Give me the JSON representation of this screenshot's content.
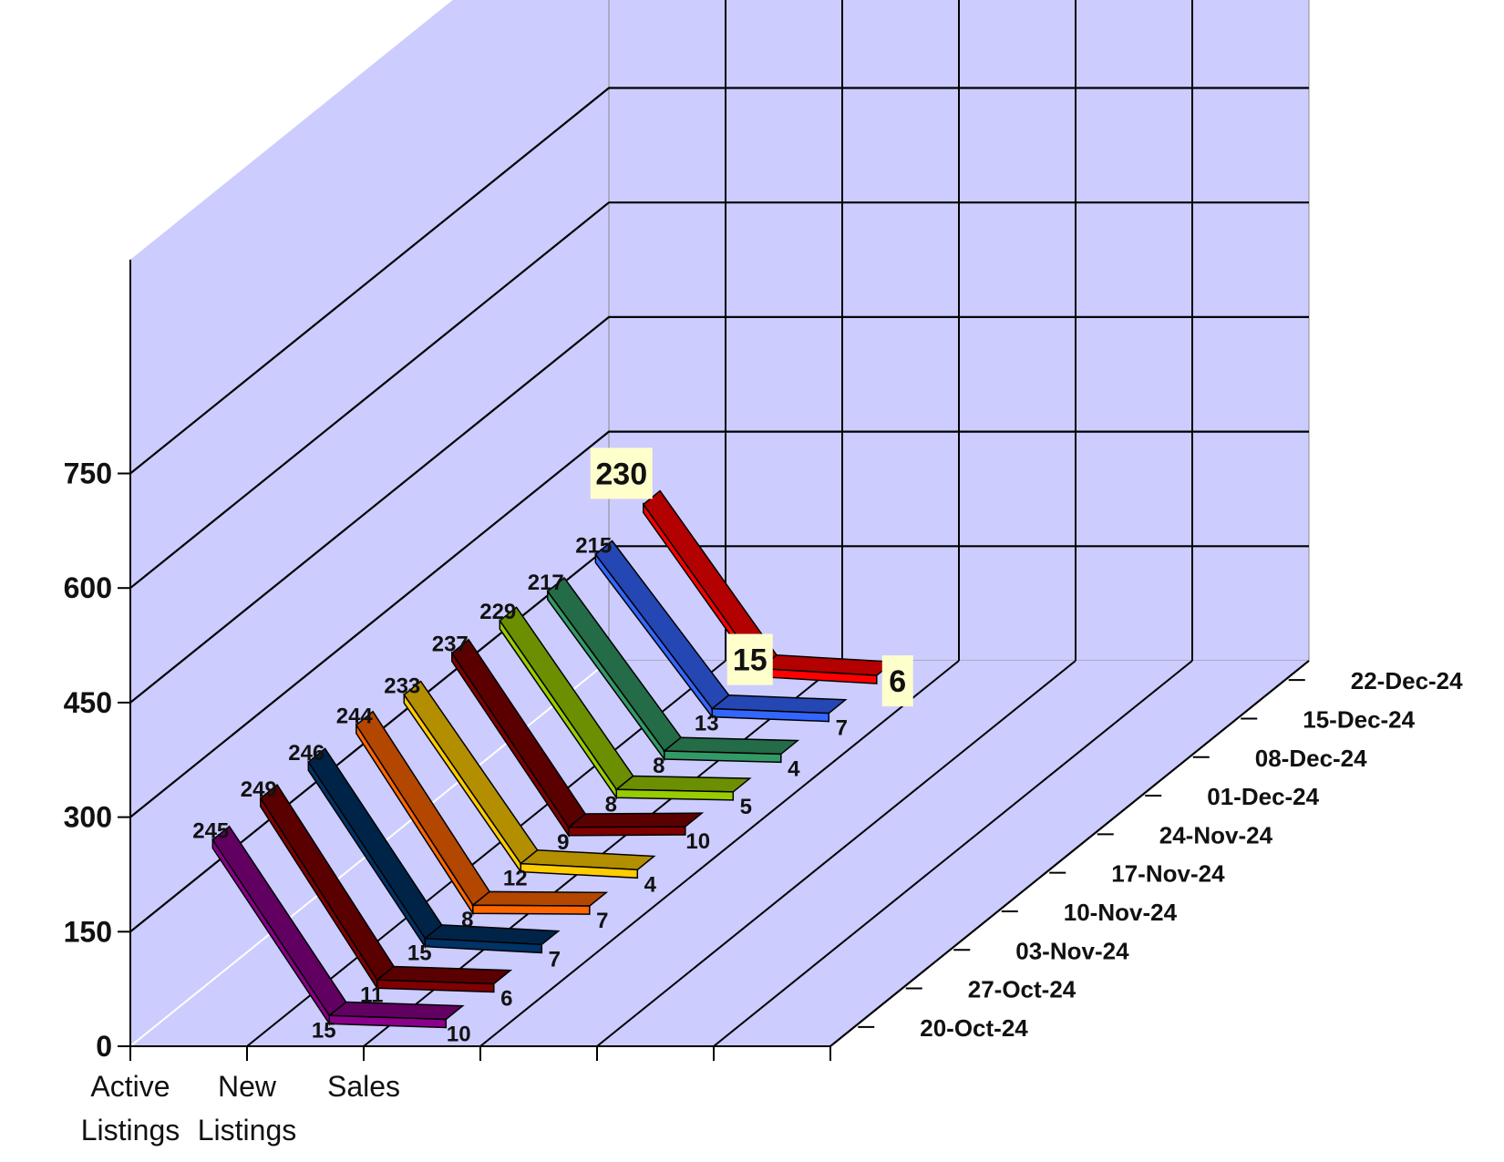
{
  "chart_data": {
    "type": "line",
    "title": "",
    "categories": [
      "Active Listings",
      "New Listings",
      "Sales"
    ],
    "category_lines": [
      [
        "Active",
        "Listings"
      ],
      [
        "New",
        "Listings"
      ],
      [
        "Sales",
        ""
      ]
    ],
    "y_ticks": [
      "0",
      "150",
      "300",
      "450",
      "600",
      "750"
    ],
    "ylim": [
      0,
      750
    ],
    "grid": true,
    "series": [
      {
        "name": "20-Oct-24",
        "values": [
          245,
          15,
          10
        ],
        "color": "#8B008B"
      },
      {
        "name": "27-Oct-24",
        "values": [
          249,
          11,
          6
        ],
        "color": "#800000"
      },
      {
        "name": "03-Nov-24",
        "values": [
          246,
          15,
          7
        ],
        "color": "#003366"
      },
      {
        "name": "10-Nov-24",
        "values": [
          244,
          8,
          7
        ],
        "color": "#FF6600"
      },
      {
        "name": "17-Nov-24",
        "values": [
          233,
          12,
          4
        ],
        "color": "#FFCC00"
      },
      {
        "name": "24-Nov-24",
        "values": [
          237,
          9,
          10
        ],
        "color": "#800000"
      },
      {
        "name": "01-Dec-24",
        "values": [
          229,
          8,
          5
        ],
        "color": "#99CC00"
      },
      {
        "name": "08-Dec-24",
        "values": [
          217,
          8,
          4
        ],
        "color": "#339966"
      },
      {
        "name": "15-Dec-24",
        "values": [
          215,
          13,
          7
        ],
        "color": "#3366FF"
      },
      {
        "name": "22-Dec-24",
        "values": [
          230,
          15,
          6
        ],
        "color": "#FF0000"
      }
    ],
    "highlight_series": "22-Dec-24",
    "wall_color": "#CCCCFF",
    "label_box_color": "#FFFFCC"
  }
}
